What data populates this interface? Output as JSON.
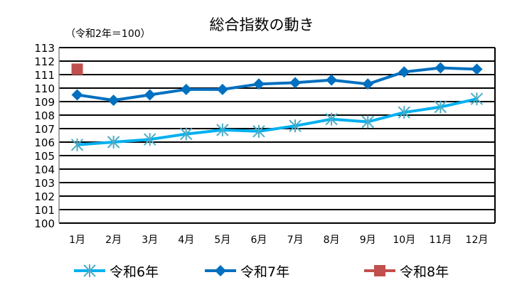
{
  "chart_data": {
    "type": "line",
    "title": "総合指数の動き",
    "subtitle": "（令和2年＝100）",
    "categories": [
      "1月",
      "2月",
      "3月",
      "4月",
      "5月",
      "6月",
      "7月",
      "8月",
      "9月",
      "10月",
      "11月",
      "12月"
    ],
    "ylim": [
      100,
      113
    ],
    "yticks": [
      "100",
      "101",
      "102",
      "103",
      "104",
      "105",
      "106",
      "107",
      "108",
      "109",
      "110",
      "111",
      "112",
      "113"
    ],
    "grid": true,
    "legend": "bottom",
    "series": [
      {
        "name": "令和6年",
        "color": "#00B0F0",
        "marker_color": "#4BACC6",
        "marker": "asterisk",
        "values": [
          105.8,
          106.0,
          106.2,
          106.6,
          106.9,
          106.8,
          107.2,
          107.7,
          107.5,
          108.2,
          108.6,
          109.2
        ]
      },
      {
        "name": "令和7年",
        "color": "#0070C0",
        "marker_color": "#0070C0",
        "marker": "diamond",
        "values": [
          109.5,
          109.1,
          109.5,
          109.9,
          109.9,
          110.3,
          110.4,
          110.6,
          110.3,
          111.2,
          111.5,
          111.4
        ]
      },
      {
        "name": "令和8年",
        "color": "#C0504D",
        "marker_color": "#C0504D",
        "marker": "square",
        "values": [
          111.4,
          null,
          null,
          null,
          null,
          null,
          null,
          null,
          null,
          null,
          null,
          null
        ]
      }
    ]
  }
}
